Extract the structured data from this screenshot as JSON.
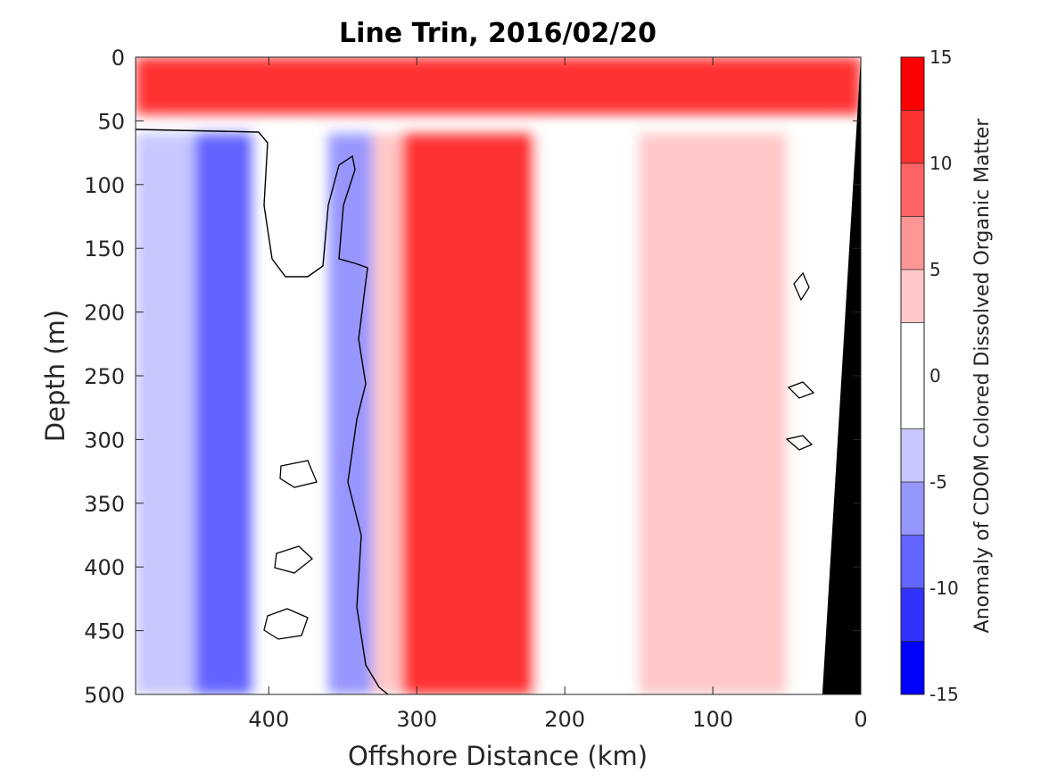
{
  "chart_data": {
    "type": "heatmap",
    "title": "Line Trin, 2016/02/20",
    "xlabel": "Offshore Distance (km)",
    "ylabel": "Depth (m)",
    "x_reversed": true,
    "y_reversed": true,
    "xlim": [
      490,
      0
    ],
    "ylim": [
      0,
      500
    ],
    "x_ticks": [
      400,
      300,
      200,
      100,
      0
    ],
    "y_ticks": [
      0,
      50,
      100,
      150,
      200,
      250,
      300,
      350,
      400,
      450,
      500
    ],
    "colorbar": {
      "label": "Anomaly of CDOM Colored Dissolved Organic Matter",
      "range": [
        -15,
        15
      ],
      "tick_values": [
        15,
        10,
        5,
        0,
        -5,
        -10,
        -15
      ],
      "levels": [
        -15,
        -12.5,
        -10,
        -7.5,
        -5,
        -2.5,
        2.5,
        5,
        7.5,
        10,
        12.5,
        15
      ],
      "colors": [
        "#0000ff",
        "#3232ff",
        "#6464ff",
        "#9696ff",
        "#c8c8ff",
        "#ffffff",
        "#ffc8c8",
        "#ff9696",
        "#ff6464",
        "#ff3232",
        "#ff0000"
      ]
    },
    "regions": [
      {
        "x_range": [
          490,
          440
        ],
        "depth_range": [
          60,
          500
        ],
        "anomaly": -4
      },
      {
        "x_range": [
          450,
          410
        ],
        "depth_range": [
          60,
          500
        ],
        "anomaly": -8
      },
      {
        "x_range": [
          410,
          370
        ],
        "depth_range": [
          60,
          500
        ],
        "anomaly": 0
      },
      {
        "x_range": [
          360,
          330
        ],
        "depth_range": [
          60,
          500
        ],
        "anomaly": -6
      },
      {
        "x_range": [
          330,
          310
        ],
        "depth_range": [
          60,
          500
        ],
        "anomaly": 4
      },
      {
        "x_range": [
          310,
          220
        ],
        "depth_range": [
          60,
          500
        ],
        "anomaly": 11
      },
      {
        "x_range": [
          220,
          150
        ],
        "depth_range": [
          60,
          500
        ],
        "anomaly": 1
      },
      {
        "x_range": [
          150,
          50
        ],
        "depth_range": [
          60,
          500
        ],
        "anomaly": 4
      },
      {
        "x_range": [
          50,
          10
        ],
        "depth_range": [
          60,
          500
        ],
        "anomaly": 0
      },
      {
        "x_range": [
          490,
          0
        ],
        "depth_range": [
          0,
          45
        ],
        "anomaly": 12
      }
    ],
    "bottom_mask": {
      "color": "#000000",
      "x_at_surface": 0,
      "x_at_500m": 26
    }
  }
}
